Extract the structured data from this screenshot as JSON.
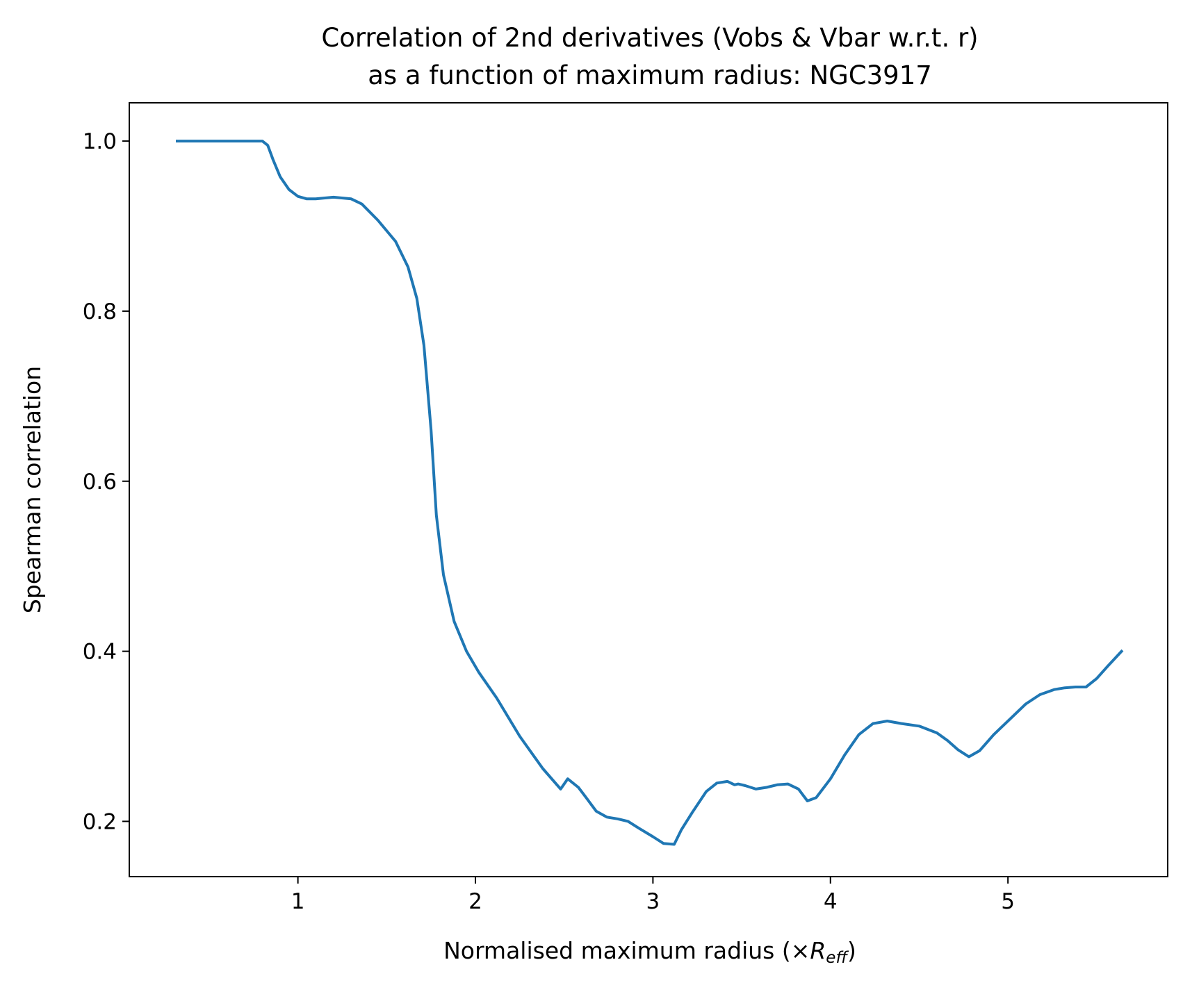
{
  "chart_data": {
    "type": "line",
    "title_line1": "Correlation of 2nd derivatives (Vobs & Vbar w.r.t. r)",
    "title_line2": "as a function of maximum radius: NGC3917",
    "xlabel_main": "Normalised maximum radius (×",
    "xlabel_var": "R",
    "xlabel_sub": "eff",
    "xlabel_close": ")",
    "ylabel": "Spearman correlation",
    "xlim": [
      0.05,
      5.9
    ],
    "ylim": [
      0.135,
      1.045
    ],
    "xticks": [
      1,
      2,
      3,
      4,
      5
    ],
    "xtick_labels": [
      "1",
      "2",
      "3",
      "4",
      "5"
    ],
    "yticks": [
      0.2,
      0.4,
      0.6,
      0.8,
      1.0
    ],
    "ytick_labels": [
      "0.2",
      "0.4",
      "0.6",
      "0.8",
      "1.0"
    ],
    "grid": false,
    "line_color": "#1f77b4",
    "series": [
      {
        "x": [
          0.32,
          0.5,
          0.7,
          0.8,
          0.83,
          0.86,
          0.9,
          0.95,
          1.0,
          1.05,
          1.1,
          1.2,
          1.3,
          1.36,
          1.45,
          1.55,
          1.62,
          1.67,
          1.71,
          1.75,
          1.78,
          1.82,
          1.88,
          1.95,
          2.02,
          2.12,
          2.25,
          2.38,
          2.48,
          2.52,
          2.58,
          2.62,
          2.68,
          2.74,
          2.8,
          2.86,
          2.92,
          3.0,
          3.06,
          3.12,
          3.16,
          3.22,
          3.3,
          3.36,
          3.42,
          3.46,
          3.48,
          3.52,
          3.58,
          3.64,
          3.7,
          3.76,
          3.82,
          3.87,
          3.92,
          4.0,
          4.08,
          4.16,
          4.24,
          4.32,
          4.4,
          4.5,
          4.6,
          4.66,
          4.72,
          4.78,
          4.84,
          4.92,
          5.02,
          5.1,
          5.18,
          5.26,
          5.32,
          5.38,
          5.44,
          5.5,
          5.56,
          5.64
        ],
        "y": [
          1.0,
          1.0,
          1.0,
          1.0,
          0.995,
          0.978,
          0.958,
          0.943,
          0.935,
          0.932,
          0.932,
          0.934,
          0.932,
          0.926,
          0.907,
          0.882,
          0.852,
          0.815,
          0.76,
          0.66,
          0.56,
          0.49,
          0.435,
          0.4,
          0.375,
          0.345,
          0.3,
          0.262,
          0.238,
          0.25,
          0.24,
          0.229,
          0.212,
          0.205,
          0.203,
          0.2,
          0.192,
          0.182,
          0.174,
          0.173,
          0.19,
          0.21,
          0.235,
          0.245,
          0.247,
          0.243,
          0.244,
          0.242,
          0.238,
          0.24,
          0.243,
          0.244,
          0.238,
          0.224,
          0.228,
          0.25,
          0.278,
          0.302,
          0.315,
          0.318,
          0.315,
          0.312,
          0.304,
          0.295,
          0.284,
          0.276,
          0.283,
          0.302,
          0.322,
          0.338,
          0.349,
          0.355,
          0.357,
          0.358,
          0.358,
          0.368,
          0.382,
          0.4
        ]
      }
    ]
  }
}
